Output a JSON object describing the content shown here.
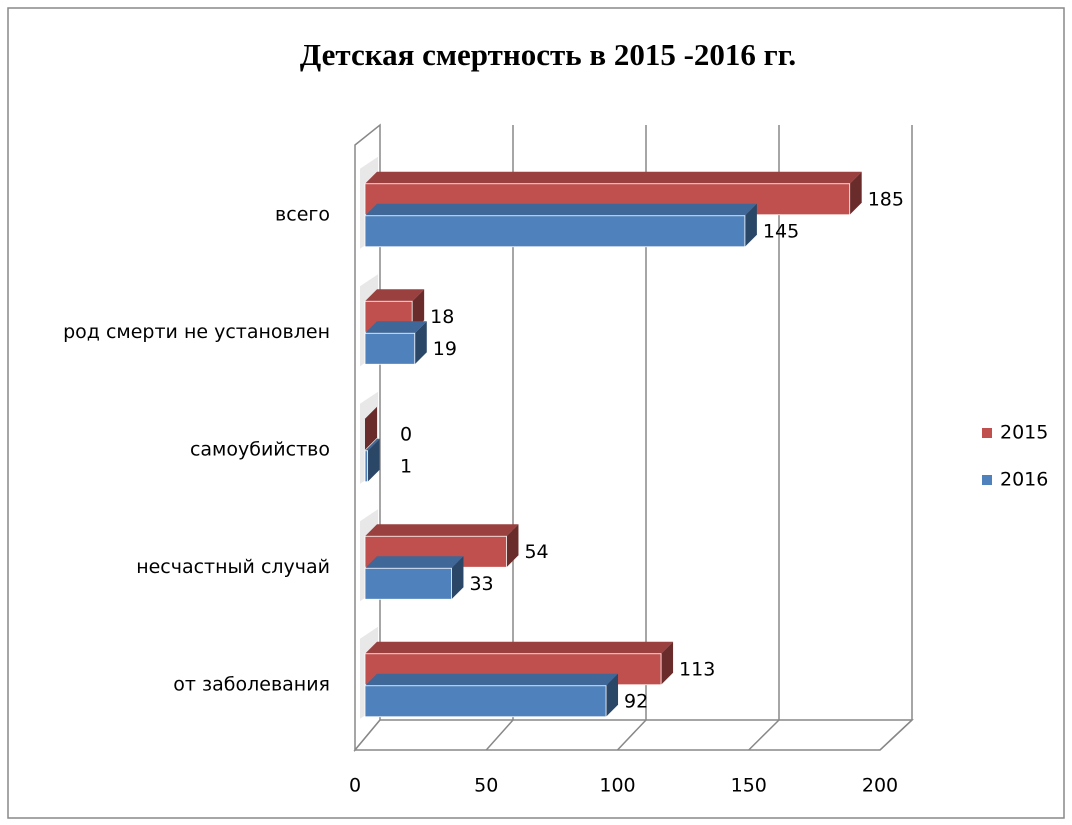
{
  "chart_data": {
    "type": "bar3d_horizontal",
    "title": "Детская смертность в 2015 -2016 гг.",
    "categories": [
      "всего",
      "род смерти не установлен",
      "самоубийство",
      "несчастный случай",
      "от заболевания"
    ],
    "series": [
      {
        "name": "2015",
        "color": "#c0504d",
        "values": [
          185,
          18,
          0,
          54,
          113
        ]
      },
      {
        "name": "2016",
        "color": "#4f81bd",
        "values": [
          145,
          19,
          1,
          33,
          92
        ]
      }
    ],
    "xlim": [
      0,
      200
    ],
    "xticks": [
      0,
      50,
      100,
      150,
      200
    ],
    "grid": true,
    "legend": "right"
  }
}
